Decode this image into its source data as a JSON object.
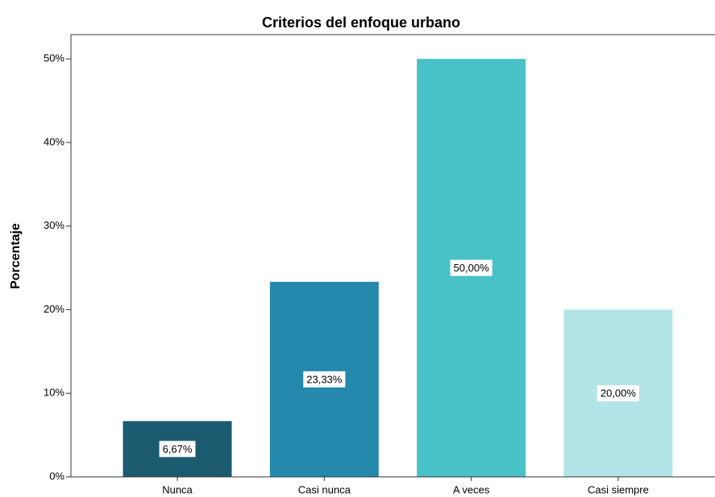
{
  "chart_data": {
    "type": "bar",
    "title": "Criterios del enfoque urbano",
    "y_label": "Porcentaje",
    "categories": [
      "Nunca",
      "Casi nunca",
      "A veces",
      "Casi siempre"
    ],
    "values": [
      6.67,
      23.33,
      50,
      20
    ],
    "value_labels": [
      "6,67%",
      "23,33%",
      "50,00%",
      "20,00%"
    ],
    "colors": [
      "#1c5b6f",
      "#2589ad",
      "#49c2c7",
      "#b3e5e8"
    ],
    "ylim": [
      0,
      52.9
    ],
    "yticks": [
      {
        "value": 0,
        "label": "0%"
      },
      {
        "value": 10,
        "label": "10%"
      },
      {
        "value": 20,
        "label": "20%"
      },
      {
        "value": 30,
        "label": "30%"
      },
      {
        "value": 40,
        "label": "40%"
      },
      {
        "value": 50,
        "label": "50%"
      }
    ]
  }
}
